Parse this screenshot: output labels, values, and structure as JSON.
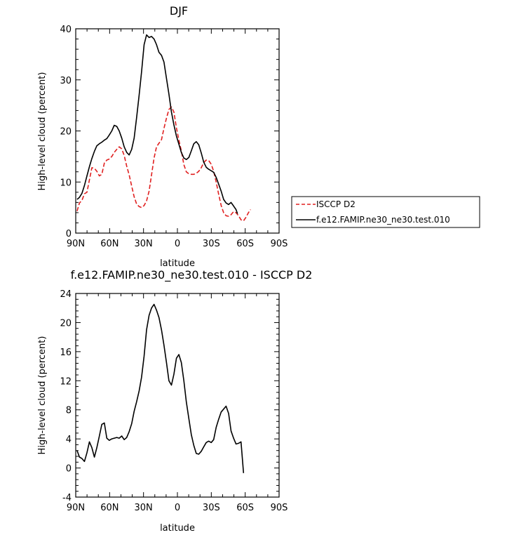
{
  "chart_data": [
    {
      "type": "line",
      "title": "DJF",
      "xlabel": "latitude",
      "ylabel": "High-level cloud (percent)",
      "xlim": [
        90,
        -90
      ],
      "ylim": [
        0,
        40
      ],
      "x_ticks": [
        90,
        60,
        30,
        0,
        -30,
        -60,
        -90
      ],
      "x_tick_labels": [
        "90N",
        "60N",
        "30N",
        "0",
        "30S",
        "60S",
        "90S"
      ],
      "y_ticks": [
        0,
        10,
        20,
        30,
        40
      ],
      "y_tick_labels": [
        "0",
        "10",
        "20",
        "30",
        "40"
      ],
      "legend_position": "right",
      "series": [
        {
          "name": "ISCCP D2",
          "color": "#e02020",
          "style": "dashed",
          "points": [
            [
              88.8,
              4.3
            ],
            [
              86.7,
              5.9
            ],
            [
              84.5,
              6.4
            ],
            [
              82.3,
              7.7
            ],
            [
              80.1,
              8.0
            ],
            [
              77.9,
              10.4
            ],
            [
              75.7,
              12.8
            ],
            [
              73.5,
              12.7
            ],
            [
              71.3,
              12.1
            ],
            [
              69.1,
              11.2
            ],
            [
              66.9,
              11.5
            ],
            [
              64.7,
              13.7
            ],
            [
              62.5,
              14.3
            ],
            [
              60.3,
              14.5
            ],
            [
              58.1,
              15.0
            ],
            [
              55.9,
              15.8
            ],
            [
              53.7,
              16.4
            ],
            [
              51.5,
              16.9
            ],
            [
              49.3,
              16.5
            ],
            [
              47.1,
              15.2
            ],
            [
              44.9,
              13.1
            ],
            [
              42.7,
              11.4
            ],
            [
              40.5,
              9.2
            ],
            [
              38.3,
              7.1
            ],
            [
              36.1,
              5.7
            ],
            [
              33.9,
              5.2
            ],
            [
              31.7,
              5.0
            ],
            [
              29.5,
              5.4
            ],
            [
              27.3,
              6.3
            ],
            [
              25.1,
              8.2
            ],
            [
              22.9,
              11.4
            ],
            [
              20.7,
              14.7
            ],
            [
              18.5,
              16.9
            ],
            [
              16.3,
              17.6
            ],
            [
              14.1,
              18.3
            ],
            [
              11.9,
              20.5
            ],
            [
              9.7,
              22.5
            ],
            [
              7.5,
              24.2
            ],
            [
              5.3,
              24.7
            ],
            [
              3.1,
              23.7
            ],
            [
              0.9,
              20.6
            ],
            [
              -1.3,
              18.2
            ],
            [
              -3.5,
              16.1
            ],
            [
              -5.7,
              13.4
            ],
            [
              -7.9,
              12.0
            ],
            [
              -10.1,
              11.6
            ],
            [
              -12.3,
              11.5
            ],
            [
              -14.5,
              11.5
            ],
            [
              -16.7,
              11.7
            ],
            [
              -18.9,
              12.1
            ],
            [
              -21.1,
              12.8
            ],
            [
              -23.3,
              13.8
            ],
            [
              -25.5,
              14.3
            ],
            [
              -27.7,
              14.2
            ],
            [
              -29.9,
              13.5
            ],
            [
              -32.1,
              12.1
            ],
            [
              -34.3,
              10.0
            ],
            [
              -36.5,
              7.6
            ],
            [
              -38.7,
              5.4
            ],
            [
              -40.9,
              4.0
            ],
            [
              -43.1,
              3.4
            ],
            [
              -45.3,
              3.3
            ],
            [
              -47.5,
              3.6
            ],
            [
              -49.7,
              4.2
            ],
            [
              -51.9,
              4.0
            ],
            [
              -54.1,
              3.4
            ],
            [
              -56.3,
              2.6
            ],
            [
              -58.5,
              2.4
            ],
            [
              -60.7,
              3.1
            ],
            [
              -62.9,
              4.0
            ],
            [
              -64.8,
              4.6
            ]
          ]
        },
        {
          "name": "f.e12.FAMIP.ne30_ne30.test.010",
          "color": "#000000",
          "style": "solid",
          "points": [
            [
              88.8,
              6.6
            ],
            [
              86.7,
              7.0
            ],
            [
              84.5,
              7.8
            ],
            [
              82.3,
              9.3
            ],
            [
              80.1,
              11.2
            ],
            [
              77.9,
              13.0
            ],
            [
              75.7,
              14.6
            ],
            [
              73.5,
              16.0
            ],
            [
              71.3,
              17.1
            ],
            [
              69.1,
              17.5
            ],
            [
              66.9,
              17.8
            ],
            [
              64.7,
              18.2
            ],
            [
              62.5,
              18.5
            ],
            [
              60.3,
              19.2
            ],
            [
              58.1,
              20.0
            ],
            [
              55.9,
              21.1
            ],
            [
              53.7,
              20.9
            ],
            [
              51.5,
              20.0
            ],
            [
              49.3,
              18.6
            ],
            [
              47.1,
              16.9
            ],
            [
              44.9,
              15.8
            ],
            [
              42.7,
              15.3
            ],
            [
              40.5,
              16.4
            ],
            [
              38.3,
              18.6
            ],
            [
              36.1,
              22.6
            ],
            [
              33.9,
              27.0
            ],
            [
              31.7,
              31.6
            ],
            [
              29.5,
              36.9
            ],
            [
              27.3,
              38.8
            ],
            [
              25.1,
              38.3
            ],
            [
              22.9,
              38.5
            ],
            [
              20.7,
              38.0
            ],
            [
              18.5,
              36.9
            ],
            [
              16.3,
              35.4
            ],
            [
              14.1,
              34.8
            ],
            [
              11.9,
              33.5
            ],
            [
              9.7,
              30.3
            ],
            [
              7.5,
              27.2
            ],
            [
              5.3,
              23.7
            ],
            [
              3.1,
              21.2
            ],
            [
              0.9,
              19.0
            ],
            [
              -1.3,
              17.4
            ],
            [
              -3.5,
              15.8
            ],
            [
              -5.7,
              14.7
            ],
            [
              -7.9,
              14.4
            ],
            [
              -10.1,
              14.8
            ],
            [
              -12.3,
              16.1
            ],
            [
              -14.5,
              17.5
            ],
            [
              -16.7,
              17.9
            ],
            [
              -18.9,
              17.3
            ],
            [
              -21.1,
              15.7
            ],
            [
              -23.3,
              13.9
            ],
            [
              -25.5,
              12.9
            ],
            [
              -27.7,
              12.5
            ],
            [
              -29.9,
              12.2
            ],
            [
              -32.1,
              11.9
            ],
            [
              -34.3,
              10.9
            ],
            [
              -36.5,
              9.6
            ],
            [
              -38.7,
              8.2
            ],
            [
              -40.9,
              6.6
            ],
            [
              -43.1,
              5.9
            ],
            [
              -45.3,
              5.6
            ],
            [
              -47.5,
              6.0
            ],
            [
              -49.7,
              5.3
            ],
            [
              -51.9,
              4.6
            ],
            [
              -53.2,
              3.8
            ]
          ]
        }
      ]
    },
    {
      "type": "line",
      "title": "f.e12.FAMIP.ne30_ne30.test.010 - ISCCP D2",
      "xlabel": "latitude",
      "ylabel": "High-level cloud (percent)",
      "xlim": [
        90,
        -90
      ],
      "ylim": [
        -4,
        24
      ],
      "x_ticks": [
        90,
        60,
        30,
        0,
        -30,
        -60,
        -90
      ],
      "x_tick_labels": [
        "90N",
        "60N",
        "30N",
        "0",
        "30S",
        "60S",
        "90S"
      ],
      "y_ticks": [
        -4,
        0,
        4,
        8,
        12,
        16,
        20,
        24
      ],
      "y_tick_labels": [
        "-4",
        "0",
        "4",
        "8",
        "12",
        "16",
        "20",
        "24"
      ],
      "series": [
        {
          "color": "#000000",
          "style": "solid",
          "points": [
            [
              88.8,
              2.4
            ],
            [
              86.7,
              1.5
            ],
            [
              84.5,
              1.3
            ],
            [
              82.3,
              0.9
            ],
            [
              80.1,
              2.1
            ],
            [
              77.9,
              3.6
            ],
            [
              75.7,
              2.8
            ],
            [
              73.5,
              1.5
            ],
            [
              71.3,
              2.8
            ],
            [
              69.1,
              4.4
            ],
            [
              66.9,
              6.0
            ],
            [
              64.7,
              6.2
            ],
            [
              62.5,
              4.1
            ],
            [
              60.3,
              3.8
            ],
            [
              58.1,
              4.0
            ],
            [
              55.9,
              4.1
            ],
            [
              53.7,
              4.2
            ],
            [
              51.5,
              4.1
            ],
            [
              49.3,
              4.4
            ],
            [
              47.1,
              3.9
            ],
            [
              44.9,
              4.2
            ],
            [
              42.7,
              5.0
            ],
            [
              40.5,
              6.1
            ],
            [
              38.3,
              7.8
            ],
            [
              36.1,
              9.1
            ],
            [
              33.9,
              10.6
            ],
            [
              31.7,
              12.5
            ],
            [
              29.5,
              15.4
            ],
            [
              27.3,
              19.0
            ],
            [
              25.1,
              21.0
            ],
            [
              22.9,
              22.0
            ],
            [
              20.7,
              22.5
            ],
            [
              18.5,
              21.7
            ],
            [
              16.3,
              20.7
            ],
            [
              14.1,
              19.0
            ],
            [
              11.9,
              16.9
            ],
            [
              9.7,
              14.5
            ],
            [
              7.5,
              12.0
            ],
            [
              5.3,
              11.4
            ],
            [
              3.1,
              12.9
            ],
            [
              0.9,
              15.1
            ],
            [
              -1.3,
              15.6
            ],
            [
              -3.5,
              14.5
            ],
            [
              -5.7,
              12.0
            ],
            [
              -7.9,
              9.1
            ],
            [
              -10.1,
              6.8
            ],
            [
              -12.3,
              4.6
            ],
            [
              -14.5,
              3.1
            ],
            [
              -16.7,
              2.0
            ],
            [
              -18.9,
              1.9
            ],
            [
              -21.1,
              2.3
            ],
            [
              -23.3,
              2.9
            ],
            [
              -25.5,
              3.5
            ],
            [
              -27.7,
              3.7
            ],
            [
              -29.9,
              3.5
            ],
            [
              -32.1,
              3.9
            ],
            [
              -34.3,
              5.6
            ],
            [
              -36.5,
              6.7
            ],
            [
              -38.7,
              7.7
            ],
            [
              -40.9,
              8.1
            ],
            [
              -43.1,
              8.5
            ],
            [
              -45.3,
              7.5
            ],
            [
              -47.5,
              5.1
            ],
            [
              -49.7,
              4.1
            ],
            [
              -51.9,
              3.3
            ],
            [
              -54.1,
              3.4
            ],
            [
              -56.3,
              3.6
            ],
            [
              -58.5,
              -0.7
            ]
          ]
        }
      ]
    }
  ]
}
